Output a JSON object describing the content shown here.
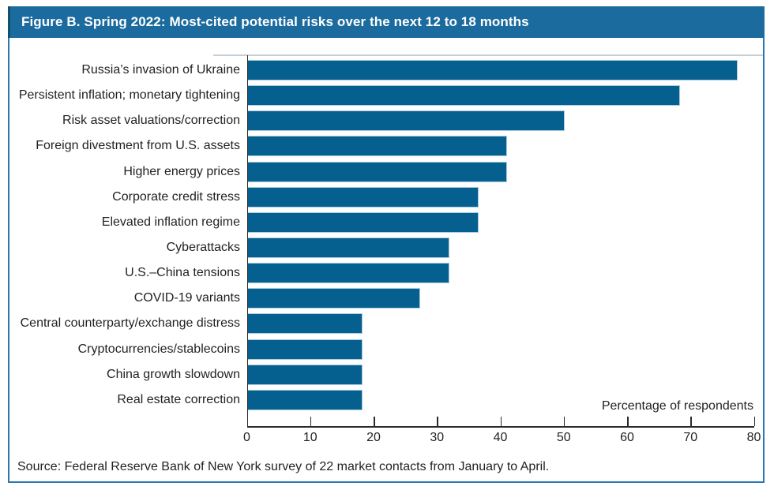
{
  "header": {
    "title": "Figure B. Spring 2022: Most-cited potential risks over the next 12 to 18 months"
  },
  "chart_data": {
    "type": "bar",
    "orientation": "horizontal",
    "title": "Figure B. Spring 2022: Most-cited potential risks over the next 12 to 18 months",
    "categories": [
      "Russia’s invasion of Ukraine",
      "Persistent inflation; monetary tightening",
      "Risk asset valuations/correction",
      "Foreign divestment from U.S. assets",
      "Higher energy prices",
      "Corporate credit stress",
      "Elevated inflation regime",
      "Cyberattacks",
      "U.S.–China tensions",
      "COVID-19 variants",
      "Central counterparty/exchange distress",
      "Cryptocurrencies/stablecoins",
      "China growth slowdown",
      "Real estate correction"
    ],
    "values": [
      77.3,
      68.2,
      50.0,
      40.9,
      40.9,
      36.4,
      36.4,
      31.8,
      31.8,
      27.3,
      18.2,
      18.2,
      18.2,
      18.2
    ],
    "xlabel": "Percentage of respondents",
    "ylabel": "",
    "xlim": [
      0,
      80
    ],
    "xticks": [
      0,
      10,
      20,
      30,
      40,
      50,
      60,
      70,
      80
    ],
    "grid": false,
    "legend": false,
    "bar_color": "#06608F"
  },
  "footer": {
    "source": "Source: Federal Reserve Bank of New York survey of 22 market contacts from January to April."
  },
  "colors": {
    "banner_background": "#1B6B9E",
    "figure_border": "#2A79B5",
    "bar_fill": "#06608F",
    "axis_line": "#2B2A29",
    "text": "#231F20"
  }
}
